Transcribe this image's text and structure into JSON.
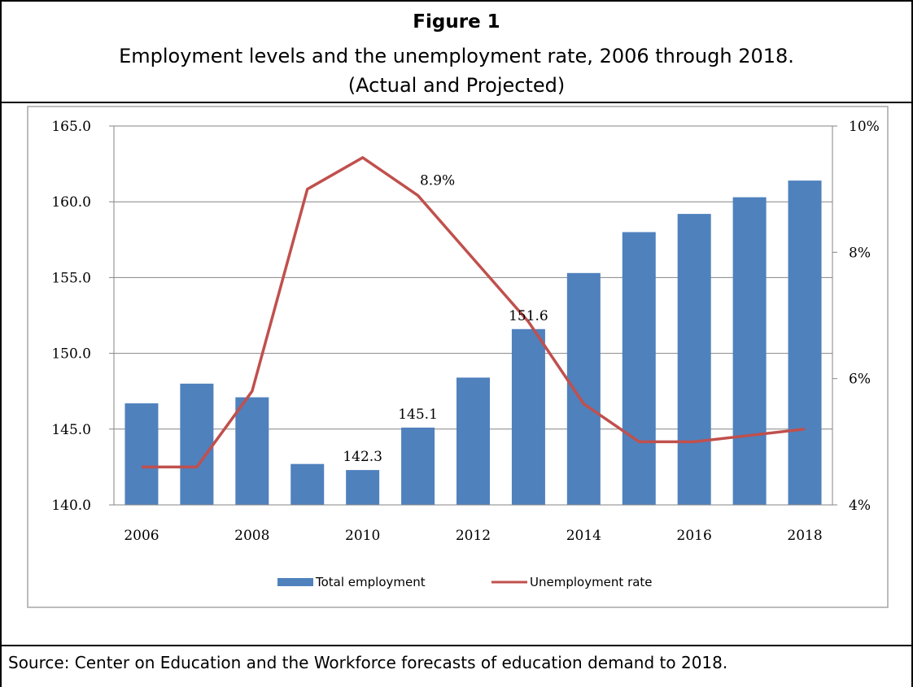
{
  "figure": {
    "label": "Figure 1",
    "subtitle_line1": "Employment levels and the unemployment rate, 2006 through 2018.",
    "subtitle_line2": "(Actual and Projected)",
    "source": "Source: Center on Education and the Workforce forecasts of education demand to 2018."
  },
  "colors": {
    "bar": "#4f81bd",
    "line": "#c0504d",
    "grid": "#868686",
    "border": "#000000"
  },
  "chart_data": {
    "type": "bar",
    "title": "",
    "xlabel": "",
    "ylabel": "",
    "categories": [
      "2006",
      "2007",
      "2008",
      "2009",
      "2010",
      "2011",
      "2012",
      "2013",
      "2014",
      "2015",
      "2016",
      "2017",
      "2018"
    ],
    "x_tick_labels": [
      "2006",
      "2008",
      "2010",
      "2012",
      "2014",
      "2016",
      "2018"
    ],
    "series": [
      {
        "name": "Total employment",
        "type": "bar",
        "axis": "left",
        "values": [
          146.7,
          148.0,
          147.1,
          142.7,
          142.3,
          145.1,
          148.4,
          151.6,
          155.3,
          158.0,
          159.2,
          160.3,
          161.4
        ],
        "data_labels": {
          "4": "142.3",
          "5": "145.1",
          "7": "151.6"
        }
      },
      {
        "name": "Unemployment rate",
        "type": "line",
        "axis": "right",
        "values": [
          4.6,
          4.6,
          5.8,
          9.0,
          9.5,
          8.9,
          7.9,
          6.9,
          5.6,
          5.0,
          5.0,
          5.1,
          5.2
        ],
        "data_labels": {
          "5": "8.9%"
        }
      }
    ],
    "y_left": {
      "min": 140,
      "max": 165,
      "step": 5,
      "tick_labels": [
        "140.0",
        "145.0",
        "150.0",
        "155.0",
        "160.0",
        "165.0"
      ]
    },
    "y_right": {
      "min": 4,
      "max": 10,
      "step": 2,
      "tick_labels": [
        "4%",
        "6%",
        "8%",
        "10%"
      ]
    },
    "grid": "horizontal",
    "legend": "bottom"
  }
}
